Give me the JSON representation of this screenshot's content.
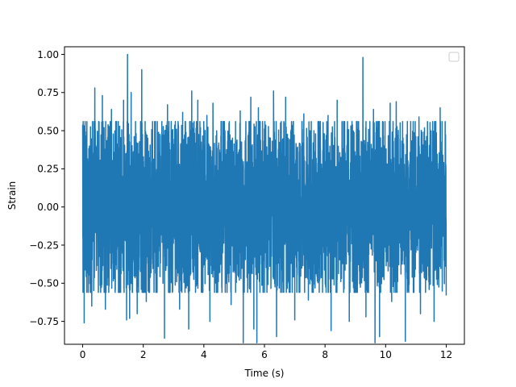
{
  "chart_data": {
    "type": "line",
    "title": "",
    "xlabel": "Time (s)",
    "ylabel": "Strain",
    "xlim": [
      -0.6,
      12.6
    ],
    "ylim": [
      -0.9,
      1.05
    ],
    "xticks": [
      0,
      2,
      4,
      6,
      8,
      10,
      12
    ],
    "xtick_labels": [
      "0",
      "2",
      "4",
      "6",
      "8",
      "10",
      "12"
    ],
    "yticks": [
      -0.75,
      -0.5,
      -0.25,
      0.0,
      0.25,
      0.5,
      0.75,
      1.0
    ],
    "ytick_labels": [
      "−0.75",
      "−0.50",
      "−0.25",
      "0.00",
      "0.25",
      "0.50",
      "0.75",
      "1.00"
    ],
    "grid": false,
    "legend": {
      "placement": "top-right",
      "entries": []
    },
    "series": [
      {
        "color": "#1f77b4",
        "x_range": [
          0,
          12
        ],
        "band": [
          -0.4,
          0.42
        ],
        "peaks": [
          {
            "x": 0.0,
            "y": 0.54
          },
          {
            "x": 0.3,
            "y": 0.64
          },
          {
            "x": 0.4,
            "y": 0.78
          },
          {
            "x": 0.65,
            "y": 0.73
          },
          {
            "x": 0.95,
            "y": 0.64
          },
          {
            "x": 1.35,
            "y": 0.7
          },
          {
            "x": 1.48,
            "y": 1.0
          },
          {
            "x": 1.55,
            "y": 0.97
          },
          {
            "x": 1.6,
            "y": 0.75
          },
          {
            "x": 1.95,
            "y": 0.9
          },
          {
            "x": 2.8,
            "y": 0.67
          },
          {
            "x": 3.3,
            "y": 0.62
          },
          {
            "x": 3.6,
            "y": 0.76
          },
          {
            "x": 3.8,
            "y": 0.7
          },
          {
            "x": 4.1,
            "y": 0.6
          },
          {
            "x": 4.3,
            "y": 0.68
          },
          {
            "x": 5.2,
            "y": 0.63
          },
          {
            "x": 5.55,
            "y": 0.72
          },
          {
            "x": 5.8,
            "y": 0.65
          },
          {
            "x": 6.3,
            "y": 0.76
          },
          {
            "x": 6.7,
            "y": 0.72
          },
          {
            "x": 7.3,
            "y": 0.61
          },
          {
            "x": 8.1,
            "y": 0.6
          },
          {
            "x": 8.4,
            "y": 0.7
          },
          {
            "x": 8.8,
            "y": 0.63
          },
          {
            "x": 9.25,
            "y": 0.98
          },
          {
            "x": 9.6,
            "y": 0.64
          },
          {
            "x": 10.15,
            "y": 0.68
          },
          {
            "x": 10.35,
            "y": 0.69
          },
          {
            "x": 11.1,
            "y": 0.59
          },
          {
            "x": 11.8,
            "y": 0.65
          }
        ],
        "troughs": [
          {
            "x": 0.05,
            "y": -0.76
          },
          {
            "x": 0.3,
            "y": -0.65
          },
          {
            "x": 0.75,
            "y": -0.67
          },
          {
            "x": 1.45,
            "y": -0.74
          },
          {
            "x": 1.55,
            "y": -0.73
          },
          {
            "x": 1.8,
            "y": -0.7
          },
          {
            "x": 2.1,
            "y": -0.62
          },
          {
            "x": 2.7,
            "y": -0.86
          },
          {
            "x": 3.2,
            "y": -0.67
          },
          {
            "x": 3.5,
            "y": -0.8
          },
          {
            "x": 4.2,
            "y": -0.75
          },
          {
            "x": 4.9,
            "y": -0.64
          },
          {
            "x": 5.3,
            "y": -0.89
          },
          {
            "x": 5.65,
            "y": -0.8
          },
          {
            "x": 5.75,
            "y": -0.89
          },
          {
            "x": 6.4,
            "y": -0.85
          },
          {
            "x": 7.0,
            "y": -0.74
          },
          {
            "x": 7.45,
            "y": -0.61
          },
          {
            "x": 8.2,
            "y": -0.81
          },
          {
            "x": 8.8,
            "y": -0.75
          },
          {
            "x": 9.35,
            "y": -0.72
          },
          {
            "x": 9.65,
            "y": -0.89
          },
          {
            "x": 9.8,
            "y": -0.85
          },
          {
            "x": 10.2,
            "y": -0.62
          },
          {
            "x": 10.65,
            "y": -0.88
          },
          {
            "x": 11.15,
            "y": -0.7
          },
          {
            "x": 11.6,
            "y": -0.75
          },
          {
            "x": 12.0,
            "y": -0.58
          }
        ]
      }
    ]
  }
}
